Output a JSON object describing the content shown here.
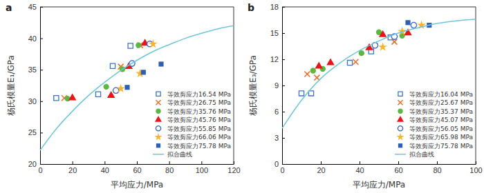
{
  "chart_data": [
    {
      "type": "scatter",
      "title": "a",
      "xlabel": "平均应力/MPa",
      "ylabel": "杨氏模量E₁/GPa",
      "xlim": [
        0,
        120
      ],
      "xticks": [
        0,
        20,
        40,
        60,
        80,
        100,
        120
      ],
      "ylim": [
        20,
        45
      ],
      "yticks": [
        20,
        25,
        30,
        35,
        40,
        45
      ],
      "legend": "lower right",
      "series": [
        {
          "name": "等效剪应力16.54 MPa",
          "color": "#3d72c4",
          "marker": "square-open",
          "x": [
            10,
            36,
            45,
            56
          ],
          "values": [
            30.5,
            31.1,
            35.6,
            38.8
          ]
        },
        {
          "name": "等效剪应力26.75 MPa",
          "color": "#e8702a",
          "marker": "x",
          "x": [
            15,
            50,
            62
          ],
          "values": [
            30.5,
            35.5,
            38.9
          ]
        },
        {
          "name": "等效剪应力35.76 MPa",
          "color": "#5cb840",
          "marker": "circle",
          "x": [
            17,
            41,
            51,
            61
          ],
          "values": [
            30.4,
            32.3,
            35.1,
            38.9
          ]
        },
        {
          "name": "等效剪应力45.76 MPa",
          "color": "#e8161b",
          "marker": "triangle",
          "x": [
            20,
            44,
            55,
            65
          ],
          "values": [
            30.5,
            30.9,
            35.5,
            39.2
          ]
        },
        {
          "name": "等效剪应力55.85 MPa",
          "color": "#3a5fcd",
          "marker": "circle-open",
          "x": [
            47,
            57,
            68
          ],
          "values": [
            31.7,
            36.0,
            39.1
          ]
        },
        {
          "name": "等效剪应力66.06 MPa",
          "color": "#f5b52e",
          "marker": "star",
          "x": [
            50,
            62,
            70
          ],
          "values": [
            32.0,
            34.4,
            39.1
          ]
        },
        {
          "name": "等效剪应力75.78 MPa",
          "color": "#2f5fb3",
          "marker": "square",
          "x": [
            54,
            64,
            75
          ],
          "values": [
            32.2,
            34.6,
            35.9
          ]
        },
        {
          "name": "拟合曲线",
          "type": "line",
          "line_style": "solid",
          "color": "#6ec6d8",
          "x": [
            0,
            10,
            20,
            30,
            40,
            50,
            60,
            70,
            80,
            90,
            100,
            110,
            120
          ],
          "values": [
            22.2,
            25.6,
            28.4,
            30.9,
            33.0,
            34.9,
            36.5,
            37.9,
            39.0,
            40.0,
            40.8,
            41.5,
            42.0
          ]
        }
      ]
    },
    {
      "type": "scatter",
      "title": "b",
      "xlabel": "平均应力/MPa",
      "ylabel": "杨氏模量E₃/GPa",
      "xlim": [
        0,
        100
      ],
      "xticks": [
        0,
        20,
        40,
        60,
        80,
        100
      ],
      "ylim": [
        0,
        18
      ],
      "yticks": [
        0,
        3,
        6,
        9,
        12,
        15,
        18
      ],
      "legend": "lower right",
      "series": [
        {
          "name": "等效剪应力16.04 MPa",
          "color": "#3d72c4",
          "marker": "square-open",
          "x": [
            10,
            15,
            35,
            46,
            56
          ],
          "values": [
            8.1,
            8.1,
            11.6,
            12.9,
            14.5
          ]
        },
        {
          "name": "等效剪应力25.67 MPa",
          "color": "#e8702a",
          "marker": "x",
          "x": [
            13,
            18,
            38,
            58
          ],
          "values": [
            10.3,
            9.9,
            11.7,
            14.0
          ]
        },
        {
          "name": "等效剪应力35.37 MPa",
          "color": "#5cb840",
          "marker": "circle",
          "x": [
            16,
            21,
            41,
            50,
            62
          ],
          "values": [
            10.7,
            10.9,
            12.7,
            15.1,
            14.7
          ]
        },
        {
          "name": "等效剪应力45.07 MPa",
          "color": "#e8161b",
          "marker": "triangle",
          "x": [
            19,
            25,
            45,
            52,
            65
          ],
          "values": [
            11.2,
            11.6,
            13.3,
            14.8,
            15.0
          ]
        },
        {
          "name": "等效剪应力56.05 MPa",
          "color": "#3a5fcd",
          "marker": "circle-open",
          "x": [
            48,
            58,
            68
          ],
          "values": [
            13.6,
            14.6,
            15.9
          ]
        },
        {
          "name": "等效剪应力65.98 MPa",
          "color": "#f5b52e",
          "marker": "star",
          "x": [
            52,
            62,
            72
          ],
          "values": [
            13.4,
            15.2,
            15.9
          ]
        },
        {
          "name": "等效剪应力75.78 MPa",
          "color": "#2f5fb3",
          "marker": "square",
          "x": [
            65,
            76
          ],
          "values": [
            16.2,
            15.9
          ]
        },
        {
          "name": "拟合曲线",
          "type": "line",
          "line_style": "solid",
          "color": "#6ec6d8",
          "x": [
            0,
            10,
            20,
            30,
            40,
            50,
            60,
            70,
            80,
            90,
            100
          ],
          "values": [
            4.1,
            7.3,
            9.8,
            11.6,
            13.0,
            14.1,
            15.0,
            15.6,
            16.1,
            16.4,
            16.6
          ]
        }
      ]
    }
  ]
}
